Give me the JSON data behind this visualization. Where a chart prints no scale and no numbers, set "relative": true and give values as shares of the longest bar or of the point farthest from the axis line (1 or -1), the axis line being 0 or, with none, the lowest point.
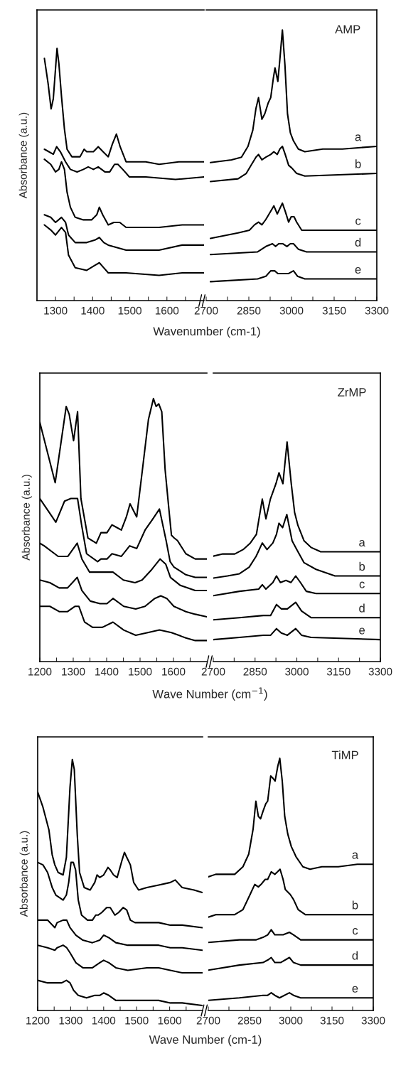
{
  "chart_data": [
    {
      "type": "line",
      "relative": true,
      "ylabel": "Absorbance (a.u.)",
      "xlabel": "Wavenumber (cm-1)",
      "xlim": [
        1250,
        1700
      ],
      "xticks": [
        1300,
        {
          "value": 1350,
          "label": null
        },
        1400,
        {
          "value": 1450,
          "label": null
        },
        1500,
        {
          "value": 1550,
          "label": null
        },
        1600,
        {
          "value": 1650,
          "label": null
        }
      ],
      "series": [
        {
          "color": "#000000",
          "x": [
            1270,
            1280,
            1288,
            1294,
            1304,
            1309,
            1316,
            1324,
            1331,
            1344,
            1366,
            1377,
            1384,
            1393,
            1402,
            1415,
            1428,
            1442,
            1453,
            1464,
            1474,
            1490,
            1508,
            1543,
            1579,
            1632,
            1700
          ],
          "values": [
            0.96,
            0.86,
            0.76,
            0.8,
            1.0,
            0.94,
            0.81,
            0.68,
            0.6,
            0.57,
            0.57,
            0.6,
            0.59,
            0.59,
            0.59,
            0.61,
            0.59,
            0.57,
            0.62,
            0.66,
            0.61,
            0.55,
            0.55,
            0.55,
            0.54,
            0.55,
            0.55
          ]
        },
        {
          "color": "#000000",
          "x": [
            1270,
            1282,
            1294,
            1303,
            1313,
            1327,
            1340,
            1358,
            1375,
            1388,
            1402,
            1415,
            1433,
            1446,
            1459,
            1468,
            1481,
            1499,
            1543,
            1623,
            1700
          ],
          "values": [
            0.6,
            0.59,
            0.58,
            0.61,
            0.59,
            0.55,
            0.52,
            0.51,
            0.52,
            0.53,
            0.52,
            0.53,
            0.51,
            0.51,
            0.54,
            0.54,
            0.52,
            0.49,
            0.49,
            0.48,
            0.49
          ]
        },
        {
          "color": "#000000",
          "x": [
            1270,
            1287,
            1300,
            1309,
            1316,
            1324,
            1331,
            1340,
            1353,
            1375,
            1397,
            1411,
            1418,
            1427,
            1442,
            1457,
            1473,
            1490,
            1535,
            1579,
            1641,
            1700
          ],
          "values": [
            0.56,
            0.54,
            0.51,
            0.52,
            0.55,
            0.52,
            0.43,
            0.37,
            0.33,
            0.32,
            0.32,
            0.34,
            0.37,
            0.34,
            0.3,
            0.31,
            0.31,
            0.29,
            0.29,
            0.29,
            0.3,
            0.3
          ]
        },
        {
          "color": "#000000",
          "x": [
            1270,
            1287,
            1300,
            1316,
            1327,
            1335,
            1353,
            1384,
            1406,
            1418,
            1430,
            1442,
            1490,
            1579,
            1641,
            1700
          ],
          "values": [
            0.34,
            0.33,
            0.31,
            0.33,
            0.31,
            0.26,
            0.23,
            0.23,
            0.24,
            0.25,
            0.23,
            0.22,
            0.2,
            0.2,
            0.22,
            0.22
          ]
        },
        {
          "color": "#000000",
          "x": [
            1270,
            1287,
            1300,
            1316,
            1327,
            1335,
            1353,
            1384,
            1406,
            1418,
            1430,
            1442,
            1490,
            1579,
            1641,
            1700
          ],
          "values": [
            0.3,
            0.28,
            0.26,
            0.29,
            0.27,
            0.18,
            0.13,
            0.12,
            0.14,
            0.15,
            0.13,
            0.11,
            0.11,
            0.1,
            0.11,
            0.11
          ]
        }
      ]
    },
    {
      "type": "line",
      "relative": true,
      "title": "AMP",
      "xlim": [
        2700,
        3300
      ],
      "xticks": [
        2700,
        {
          "value": 2775,
          "label": null
        },
        2850,
        {
          "value": 2925,
          "label": null
        },
        3000,
        {
          "value": 3075,
          "label": null
        },
        3150,
        {
          "value": 3225,
          "label": null
        },
        3300
      ],
      "series": [
        {
          "name": "a",
          "color": "#000000",
          "x": [
            2715,
            2789,
            2824,
            2847,
            2864,
            2875,
            2884,
            2896,
            2906,
            2918,
            2927,
            2936,
            2942,
            2952,
            2959,
            2968,
            2977,
            2986,
            2996,
            3007,
            3024,
            3047,
            3110,
            3179,
            3300
          ],
          "values": [
            0.51,
            0.52,
            0.53,
            0.57,
            0.63,
            0.71,
            0.75,
            0.67,
            0.69,
            0.73,
            0.75,
            0.82,
            0.86,
            0.81,
            0.89,
            1.0,
            0.87,
            0.69,
            0.62,
            0.59,
            0.56,
            0.55,
            0.56,
            0.56,
            0.57
          ]
        },
        {
          "name": "b",
          "color": "#000000",
          "x": [
            2715,
            2812,
            2841,
            2858,
            2875,
            2884,
            2896,
            2910,
            2927,
            2938,
            2950,
            2959,
            2968,
            2978,
            2990,
            3001,
            3018,
            3047,
            3300
          ],
          "values": [
            0.44,
            0.45,
            0.47,
            0.5,
            0.53,
            0.54,
            0.52,
            0.53,
            0.54,
            0.55,
            0.54,
            0.56,
            0.57,
            0.54,
            0.5,
            0.49,
            0.47,
            0.46,
            0.47
          ]
        },
        {
          "name": "c",
          "color": "#000000",
          "x": [
            2715,
            2812,
            2852,
            2870,
            2884,
            2896,
            2910,
            2927,
            2938,
            2950,
            2959,
            2968,
            2978,
            2990,
            2999,
            3009,
            3018,
            3036,
            3053,
            3300
          ],
          "values": [
            0.23,
            0.25,
            0.26,
            0.28,
            0.29,
            0.28,
            0.3,
            0.33,
            0.35,
            0.32,
            0.34,
            0.36,
            0.33,
            0.29,
            0.31,
            0.31,
            0.29,
            0.26,
            0.26,
            0.26
          ]
        },
        {
          "name": "d",
          "color": "#000000",
          "x": [
            2715,
            2881,
            2910,
            2933,
            2944,
            2955,
            2970,
            2984,
            2996,
            3007,
            3024,
            3053,
            3300
          ],
          "values": [
            0.17,
            0.18,
            0.2,
            0.21,
            0.2,
            0.21,
            0.21,
            0.2,
            0.21,
            0.21,
            0.19,
            0.18,
            0.18
          ]
        },
        {
          "name": "e",
          "color": "#000000",
          "x": [
            2715,
            2881,
            2910,
            2927,
            2941,
            2952,
            2963,
            2975,
            2990,
            3007,
            3021,
            3047,
            3300
          ],
          "values": [
            0.07,
            0.08,
            0.09,
            0.11,
            0.11,
            0.1,
            0.1,
            0.1,
            0.1,
            0.11,
            0.09,
            0.08,
            0.08
          ]
        }
      ]
    },
    {
      "type": "line",
      "relative": true,
      "ylabel": "Absorbance (a.u.)",
      "xlabel": "Wave Number (cm$^{−1}$)",
      "xlim": [
        1200,
        1700
      ],
      "xticks": [
        1200,
        {
          "value": 1250,
          "label": null
        },
        1300,
        {
          "value": 1350,
          "label": null
        },
        1400,
        {
          "value": 1450,
          "label": null
        },
        1500,
        {
          "value": 1550,
          "label": null
        },
        1600,
        {
          "value": 1650,
          "label": null
        }
      ],
      "series": [
        {
          "color": "#000000",
          "x": [
            1200,
            1246,
            1279,
            1288,
            1301,
            1313,
            1323,
            1344,
            1369,
            1383,
            1401,
            1416,
            1430,
            1444,
            1459,
            1470,
            1490,
            1510,
            1525,
            1540,
            1548,
            1556,
            1565,
            1575,
            1587,
            1594,
            1602,
            1612,
            1637,
            1665,
            1700
          ],
          "values": [
            0.91,
            0.68,
            0.97,
            0.94,
            0.84,
            0.95,
            0.62,
            0.47,
            0.45,
            0.49,
            0.49,
            0.52,
            0.51,
            0.5,
            0.55,
            0.6,
            0.55,
            0.76,
            0.92,
            1.0,
            0.97,
            0.98,
            0.95,
            0.73,
            0.57,
            0.48,
            0.47,
            0.46,
            0.41,
            0.39,
            0.39
          ]
        },
        {
          "color": "#000000",
          "x": [
            1200,
            1248,
            1274,
            1293,
            1313,
            1325,
            1340,
            1373,
            1383,
            1401,
            1416,
            1444,
            1469,
            1490,
            1515,
            1537,
            1558,
            1578,
            1590,
            1601,
            1637,
            1665,
            1700
          ],
          "values": [
            0.62,
            0.53,
            0.61,
            0.62,
            0.62,
            0.52,
            0.41,
            0.38,
            0.39,
            0.39,
            0.41,
            0.4,
            0.44,
            0.43,
            0.5,
            0.54,
            0.58,
            0.46,
            0.38,
            0.36,
            0.33,
            0.32,
            0.32
          ]
        },
        {
          "color": "#000000",
          "x": [
            1200,
            1213,
            1255,
            1284,
            1312,
            1326,
            1349,
            1377,
            1419,
            1450,
            1485,
            1506,
            1535,
            1560,
            1577,
            1591,
            1620,
            1665,
            1700
          ],
          "values": [
            0.45,
            0.44,
            0.4,
            0.4,
            0.45,
            0.39,
            0.34,
            0.34,
            0.34,
            0.31,
            0.3,
            0.31,
            0.35,
            0.39,
            0.37,
            0.32,
            0.29,
            0.27,
            0.27
          ]
        },
        {
          "color": "#000000",
          "x": [
            1200,
            1230,
            1258,
            1283,
            1312,
            1326,
            1351,
            1380,
            1401,
            1419,
            1451,
            1487,
            1515,
            1544,
            1562,
            1580,
            1601,
            1637,
            1665,
            1700
          ],
          "values": [
            0.31,
            0.3,
            0.28,
            0.28,
            0.32,
            0.27,
            0.23,
            0.22,
            0.22,
            0.24,
            0.21,
            0.2,
            0.21,
            0.24,
            0.25,
            0.24,
            0.21,
            0.19,
            0.18,
            0.17
          ]
        },
        {
          "color": "#000000",
          "x": [
            1200,
            1230,
            1258,
            1283,
            1305,
            1317,
            1334,
            1358,
            1387,
            1419,
            1451,
            1487,
            1523,
            1558,
            1594,
            1637,
            1665,
            1700
          ],
          "values": [
            0.21,
            0.21,
            0.19,
            0.19,
            0.21,
            0.21,
            0.15,
            0.13,
            0.13,
            0.15,
            0.12,
            0.1,
            0.11,
            0.12,
            0.11,
            0.09,
            0.08,
            0.08
          ]
        }
      ]
    },
    {
      "type": "line",
      "relative": true,
      "title": "ZrMP",
      "xlim": [
        2700,
        3300
      ],
      "xticks": [
        2700,
        {
          "value": 2775,
          "label": null
        },
        2850,
        {
          "value": 2925,
          "label": null
        },
        3000,
        {
          "value": 3075,
          "label": null
        },
        3150,
        {
          "value": 3225,
          "label": null
        },
        3300
      ],
      "series": [
        {
          "name": "a",
          "color": "#000000",
          "x": [
            2700,
            2734,
            2777,
            2807,
            2833,
            2855,
            2868,
            2876,
            2889,
            2905,
            2925,
            2936,
            2950,
            2965,
            2980,
            2992,
            3004,
            3026,
            3051,
            3086,
            3137,
            3300
          ],
          "values": [
            0.48,
            0.49,
            0.49,
            0.51,
            0.54,
            0.58,
            0.68,
            0.74,
            0.65,
            0.74,
            0.81,
            0.86,
            0.81,
            1.0,
            0.81,
            0.68,
            0.62,
            0.55,
            0.52,
            0.5,
            0.5,
            0.5
          ]
        },
        {
          "name": "b",
          "color": "#000000",
          "x": [
            2700,
            2751,
            2794,
            2829,
            2854,
            2876,
            2893,
            2914,
            2927,
            2936,
            2949,
            2964,
            2983,
            3000,
            3026,
            3069,
            3137,
            3300
          ],
          "values": [
            0.38,
            0.39,
            0.4,
            0.43,
            0.48,
            0.54,
            0.51,
            0.54,
            0.58,
            0.63,
            0.61,
            0.67,
            0.55,
            0.51,
            0.45,
            0.42,
            0.39,
            0.39
          ]
        },
        {
          "name": "c",
          "color": "#000000",
          "x": [
            2700,
            2794,
            2863,
            2876,
            2889,
            2914,
            2927,
            2941,
            2961,
            2979,
            2996,
            3013,
            3034,
            3069,
            3300
          ],
          "values": [
            0.3,
            0.32,
            0.33,
            0.35,
            0.33,
            0.36,
            0.39,
            0.36,
            0.37,
            0.36,
            0.39,
            0.36,
            0.32,
            0.31,
            0.31
          ]
        },
        {
          "name": "d",
          "color": "#000000",
          "x": [
            2700,
            2794,
            2880,
            2906,
            2927,
            2944,
            2966,
            2996,
            3017,
            3051,
            3300
          ],
          "values": [
            0.19,
            0.2,
            0.21,
            0.21,
            0.26,
            0.24,
            0.24,
            0.27,
            0.23,
            0.2,
            0.2
          ]
        },
        {
          "name": "e",
          "color": "#000000",
          "x": [
            2700,
            2794,
            2880,
            2906,
            2927,
            2944,
            2966,
            2996,
            3017,
            3051,
            3300
          ],
          "values": [
            0.1,
            0.11,
            0.12,
            0.12,
            0.15,
            0.13,
            0.12,
            0.15,
            0.12,
            0.11,
            0.1
          ]
        }
      ]
    },
    {
      "type": "line",
      "relative": true,
      "ylabel": "Absorbance (a.u.)",
      "xlabel": "Wave Number (cm-1)",
      "xlim": [
        1200,
        1700
      ],
      "xticks": [
        1200,
        {
          "value": 1250,
          "label": null
        },
        1300,
        {
          "value": 1350,
          "label": null
        },
        1400,
        {
          "value": 1450,
          "label": null
        },
        1500,
        {
          "value": 1550,
          "label": null
        },
        1600,
        {
          "value": 1650,
          "label": null
        }
      ],
      "series": [
        {
          "color": "#000000",
          "x": [
            1200,
            1216,
            1234,
            1244,
            1252,
            1262,
            1277,
            1287,
            1298,
            1305,
            1311,
            1320,
            1327,
            1341,
            1359,
            1373,
            1380,
            1388,
            1400,
            1413,
            1420,
            1430,
            1441,
            1456,
            1463,
            1470,
            1481,
            1491,
            1506,
            1531,
            1567,
            1602,
            1617,
            1638,
            1674,
            1699
          ],
          "values": [
            0.87,
            0.81,
            0.72,
            0.62,
            0.58,
            0.55,
            0.54,
            0.61,
            0.89,
            1.0,
            0.96,
            0.7,
            0.55,
            0.49,
            0.48,
            0.51,
            0.54,
            0.53,
            0.54,
            0.57,
            0.56,
            0.54,
            0.53,
            0.6,
            0.63,
            0.61,
            0.58,
            0.51,
            0.48,
            0.49,
            0.5,
            0.51,
            0.52,
            0.49,
            0.48,
            0.47
          ]
        },
        {
          "color": "#000000",
          "x": [
            1200,
            1216,
            1230,
            1244,
            1255,
            1266,
            1277,
            1287,
            1294,
            1301,
            1308,
            1315,
            1323,
            1333,
            1351,
            1366,
            1376,
            1383,
            1394,
            1409,
            1420,
            1434,
            1445,
            1459,
            1470,
            1481,
            1495,
            1531,
            1567,
            1602,
            1638,
            1699
          ],
          "values": [
            0.59,
            0.58,
            0.55,
            0.49,
            0.46,
            0.45,
            0.44,
            0.46,
            0.51,
            0.59,
            0.59,
            0.56,
            0.44,
            0.38,
            0.36,
            0.36,
            0.38,
            0.38,
            0.39,
            0.41,
            0.41,
            0.38,
            0.39,
            0.41,
            0.4,
            0.36,
            0.35,
            0.35,
            0.35,
            0.34,
            0.34,
            0.33
          ]
        },
        {
          "color": "#000000",
          "x": [
            1200,
            1230,
            1252,
            1259,
            1277,
            1288,
            1298,
            1316,
            1337,
            1366,
            1388,
            1400,
            1416,
            1437,
            1473,
            1531,
            1567,
            1602,
            1638,
            1699
          ],
          "values": [
            0.36,
            0.36,
            0.33,
            0.35,
            0.36,
            0.36,
            0.33,
            0.3,
            0.28,
            0.27,
            0.28,
            0.3,
            0.29,
            0.27,
            0.26,
            0.26,
            0.26,
            0.25,
            0.25,
            0.24
          ]
        },
        {
          "color": "#000000",
          "x": [
            1200,
            1230,
            1252,
            1259,
            1277,
            1288,
            1298,
            1316,
            1337,
            1366,
            1388,
            1400,
            1416,
            1437,
            1473,
            1531,
            1567,
            1602,
            1638,
            1699
          ],
          "values": [
            0.26,
            0.25,
            0.24,
            0.25,
            0.26,
            0.25,
            0.23,
            0.19,
            0.17,
            0.17,
            0.19,
            0.2,
            0.19,
            0.17,
            0.16,
            0.17,
            0.17,
            0.16,
            0.15,
            0.15
          ]
        },
        {
          "color": "#000000",
          "x": [
            1200,
            1230,
            1259,
            1273,
            1287,
            1298,
            1309,
            1323,
            1348,
            1373,
            1388,
            1400,
            1416,
            1437,
            1473,
            1531,
            1567,
            1602,
            1638,
            1699
          ],
          "values": [
            0.12,
            0.11,
            0.11,
            0.11,
            0.12,
            0.11,
            0.08,
            0.06,
            0.05,
            0.06,
            0.06,
            0.07,
            0.06,
            0.04,
            0.04,
            0.04,
            0.04,
            0.03,
            0.03,
            0.02
          ]
        }
      ]
    },
    {
      "type": "line",
      "relative": true,
      "title": "TiMP",
      "xlim": [
        2700,
        3300
      ],
      "xticks": [
        2700,
        {
          "value": 2775,
          "label": null
        },
        2850,
        {
          "value": 2925,
          "label": null
        },
        3000,
        {
          "value": 3075,
          "label": null
        },
        3150,
        {
          "value": 3225,
          "label": null
        },
        3300
      ],
      "series": [
        {
          "name": "a",
          "color": "#000000",
          "x": [
            2700,
            2727,
            2745,
            2796,
            2826,
            2847,
            2863,
            2873,
            2882,
            2890,
            2899,
            2909,
            2916,
            2927,
            2936,
            2943,
            2953,
            2960,
            2969,
            2978,
            2989,
            3002,
            3019,
            3044,
            3070,
            3113,
            3173,
            3242,
            3300
          ],
          "values": [
            0.53,
            0.54,
            0.54,
            0.54,
            0.57,
            0.62,
            0.72,
            0.83,
            0.77,
            0.76,
            0.79,
            0.82,
            0.83,
            0.93,
            0.92,
            0.91,
            0.97,
            1.0,
            0.91,
            0.77,
            0.7,
            0.65,
            0.61,
            0.57,
            0.56,
            0.57,
            0.57,
            0.58,
            0.58
          ]
        },
        {
          "name": "b",
          "color": "#000000",
          "x": [
            2700,
            2727,
            2796,
            2826,
            2852,
            2869,
            2882,
            2892,
            2907,
            2916,
            2929,
            2942,
            2952,
            2961,
            2972,
            2980,
            2998,
            3010,
            3027,
            3053,
            3113,
            3300
          ],
          "values": [
            0.37,
            0.38,
            0.38,
            0.4,
            0.46,
            0.5,
            0.49,
            0.5,
            0.52,
            0.52,
            0.55,
            0.54,
            0.55,
            0.56,
            0.52,
            0.48,
            0.46,
            0.44,
            0.4,
            0.38,
            0.38,
            0.38
          ]
        },
        {
          "name": "c",
          "color": "#000000",
          "x": [
            2700,
            2813,
            2873,
            2899,
            2916,
            2929,
            2942,
            2955,
            2972,
            2995,
            3010,
            3036,
            3070,
            3300
          ],
          "values": [
            0.27,
            0.28,
            0.28,
            0.29,
            0.3,
            0.32,
            0.3,
            0.3,
            0.3,
            0.31,
            0.3,
            0.28,
            0.28,
            0.28
          ]
        },
        {
          "name": "d",
          "color": "#000000",
          "x": [
            2700,
            2813,
            2899,
            2916,
            2929,
            2942,
            2963,
            2995,
            3010,
            3036,
            3300
          ],
          "values": [
            0.16,
            0.18,
            0.19,
            0.2,
            0.21,
            0.19,
            0.19,
            0.21,
            0.19,
            0.18,
            0.18
          ]
        },
        {
          "name": "e",
          "color": "#000000",
          "x": [
            2700,
            2813,
            2899,
            2916,
            2929,
            2942,
            2959,
            2995,
            3010,
            3036,
            3300
          ],
          "values": [
            0.04,
            0.05,
            0.06,
            0.06,
            0.07,
            0.06,
            0.05,
            0.07,
            0.06,
            0.05,
            0.05
          ]
        }
      ]
    }
  ]
}
